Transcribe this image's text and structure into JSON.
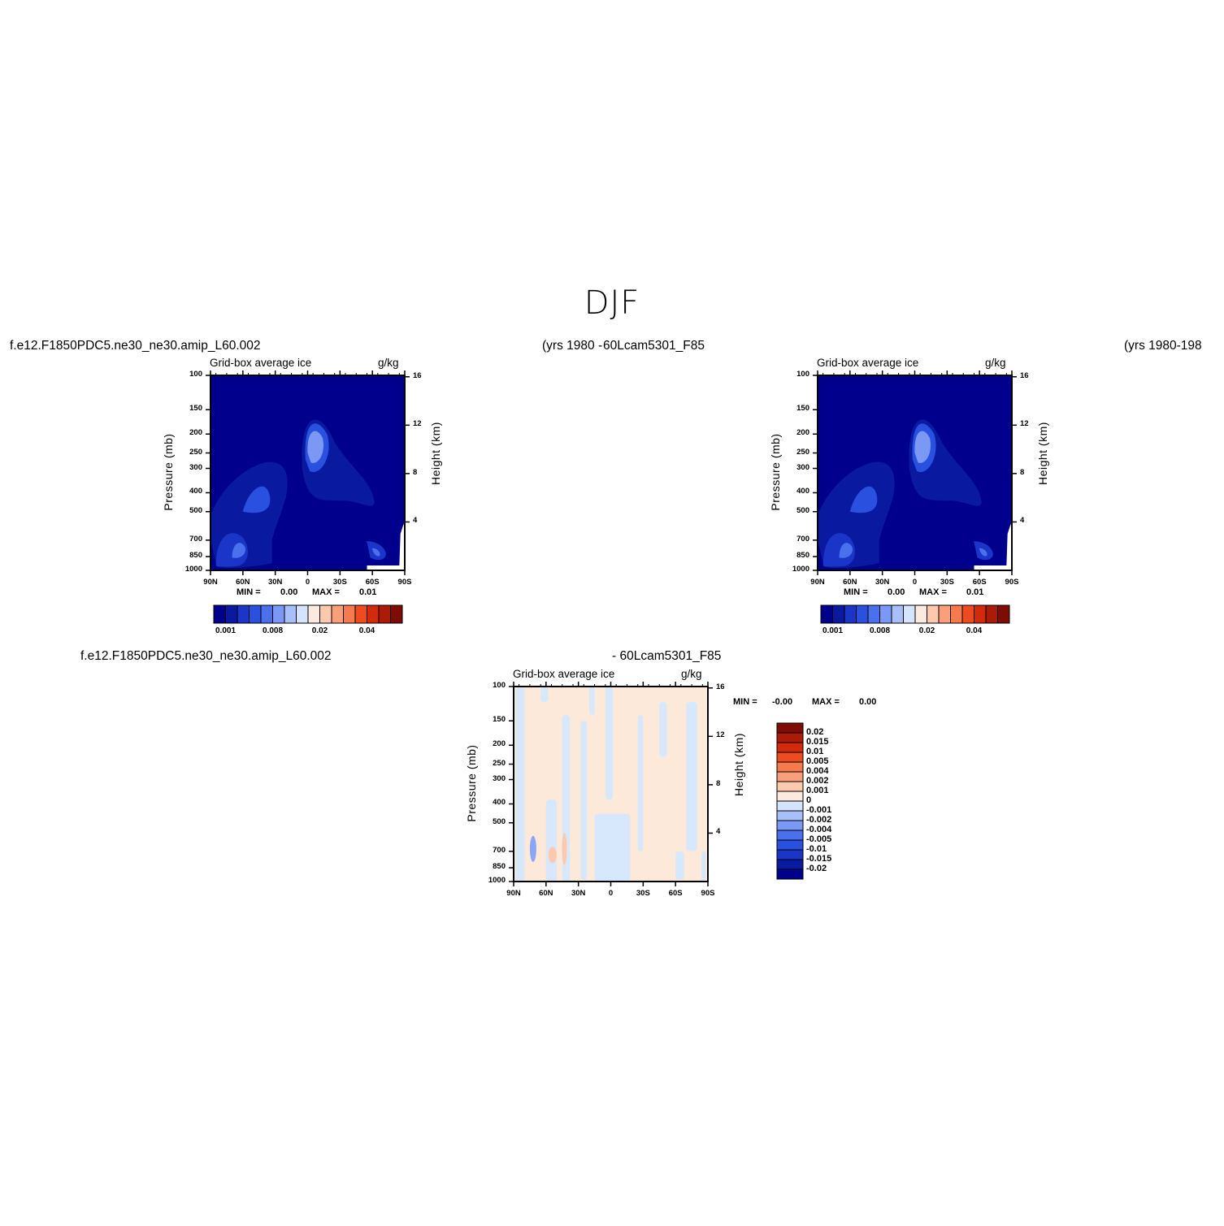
{
  "season": "DJF",
  "case_left": "f.e12.F1850PDC5.ne30_ne30.amip_L60.002",
  "years_left": "(yrs 1980",
  "years_left_overlap": "-",
  "case_right": "60Lcam5301_F85",
  "years_right": "(yrs 1980-198",
  "diff_case_left": "f.e12.F1850PDC5.ne30_ne30.amip_L60.002",
  "diff_case_right": "- 60Lcam5301_F85",
  "colors": {
    "fill_low": "#00008c",
    "fill_blues": [
      "#00008c",
      "#0a1aa0",
      "#1a35c8",
      "#2a50e0",
      "#4a70ee",
      "#7a98f4",
      "#a8c0fa",
      "#d4e4fd"
    ],
    "fill_reds": [
      "#fdeadf",
      "#fcc9ad",
      "#f9a07a",
      "#f67a4e",
      "#ee4b20",
      "#d42a0c",
      "#ac1a08",
      "#7e0b04"
    ],
    "diff_pos": "#fde9d9",
    "diff_neg": "#d8e8fc"
  },
  "chart_data": [
    {
      "type": "heatmap",
      "panel": "top-left",
      "title_left": "Grid-box average ice",
      "title_right": "g/kg",
      "xlabel": "",
      "ylabel": "Pressure (mb)",
      "ylabel_right": "Height (km)",
      "x_ticks": [
        "90N",
        "60N",
        "30N",
        "0",
        "30S",
        "60S",
        "90S"
      ],
      "y_ticks": [
        "100",
        "150",
        "200",
        "250",
        "300",
        "400",
        "500",
        "700",
        "850",
        "1000"
      ],
      "y_ticks_right": [
        "16",
        "12",
        "8",
        "4"
      ],
      "ylim": [
        1000,
        100
      ],
      "y_scale": "log",
      "min_label": "MIN =",
      "min_value": "0.00",
      "max_label": "MAX =",
      "max_value": "0.01",
      "colorbar": {
        "orientation": "horizontal",
        "labels": [
          "0.001",
          "0.008",
          "0.02",
          "0.04"
        ]
      }
    },
    {
      "type": "heatmap",
      "panel": "top-right",
      "title_left": "Grid-box average ice",
      "title_right": "g/kg",
      "xlabel": "",
      "ylabel": "Pressure (mb)",
      "ylabel_right": "Height (km)",
      "x_ticks": [
        "90N",
        "60N",
        "30N",
        "0",
        "30S",
        "60S",
        "90S"
      ],
      "y_ticks": [
        "100",
        "150",
        "200",
        "250",
        "300",
        "400",
        "500",
        "700",
        "850",
        "1000"
      ],
      "y_ticks_right": [
        "16",
        "12",
        "8",
        "4"
      ],
      "ylim": [
        1000,
        100
      ],
      "y_scale": "log",
      "min_label": "MIN =",
      "min_value": "0.00",
      "max_label": "MAX =",
      "max_value": "0.01",
      "colorbar": {
        "orientation": "horizontal",
        "labels": [
          "0.001",
          "0.008",
          "0.02",
          "0.04"
        ]
      }
    },
    {
      "type": "heatmap",
      "panel": "bottom-center",
      "title_left": "Grid-box average ice",
      "title_right": "g/kg",
      "xlabel": "",
      "ylabel": "Pressure (mb)",
      "ylabel_right": "Height (km)",
      "x_ticks": [
        "90N",
        "60N",
        "30N",
        "0",
        "30S",
        "60S",
        "90S"
      ],
      "y_ticks": [
        "100",
        "150",
        "200",
        "250",
        "300",
        "400",
        "500",
        "700",
        "850",
        "1000"
      ],
      "y_ticks_right": [
        "16",
        "12",
        "8",
        "4"
      ],
      "ylim": [
        1000,
        100
      ],
      "y_scale": "log",
      "min_label": "MIN =",
      "min_value": "-0.00",
      "max_label": "MAX =",
      "max_value": "0.00",
      "colorbar": {
        "orientation": "vertical",
        "labels": [
          "0.02",
          "0.015",
          "0.01",
          "0.005",
          "0.004",
          "0.002",
          "0.001",
          "0",
          "-0.001",
          "-0.002",
          "-0.004",
          "-0.005",
          "-0.01",
          "-0.015",
          "-0.02"
        ]
      }
    }
  ]
}
